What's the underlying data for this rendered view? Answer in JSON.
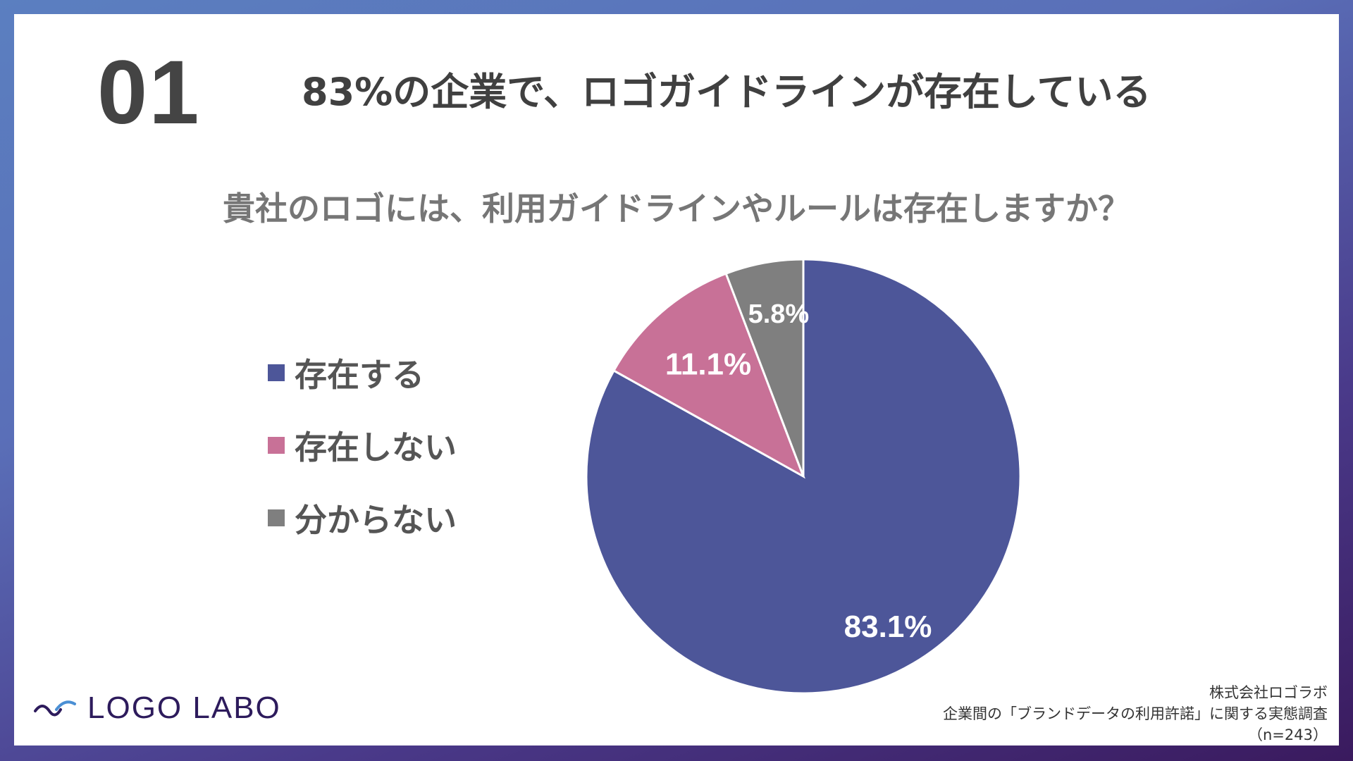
{
  "number": "01",
  "headline": "83%の企業で、ロゴガイドラインが存在している",
  "question": "貴社のロゴには、利用ガイドラインやルールは存在しますか？",
  "colors": {
    "exists": "#4d5699",
    "not_exists": "#c87197",
    "unknown": "#7f7f7f"
  },
  "chart_data": {
    "type": "pie",
    "title": "貴社のロゴには、利用ガイドラインやルールは存在しますか？",
    "categories": [
      "存在する",
      "存在しない",
      "分からない"
    ],
    "values": [
      83.1,
      11.1,
      5.8
    ],
    "labels": [
      "83.1%",
      "11.1%",
      "5.8%"
    ],
    "colors": [
      "#4d5699",
      "#c87197",
      "#7f7f7f"
    ],
    "legend": "left",
    "start_angle": "12 o'clock",
    "direction": "clockwise"
  },
  "logo": {
    "text": "LOGO LABO",
    "icon": "wave-check-icon"
  },
  "source": {
    "company": "株式会社ロゴラボ",
    "survey": "企業間の「ブランドデータの利用許諾」に関する実態調査",
    "sample": "（n=243）"
  }
}
